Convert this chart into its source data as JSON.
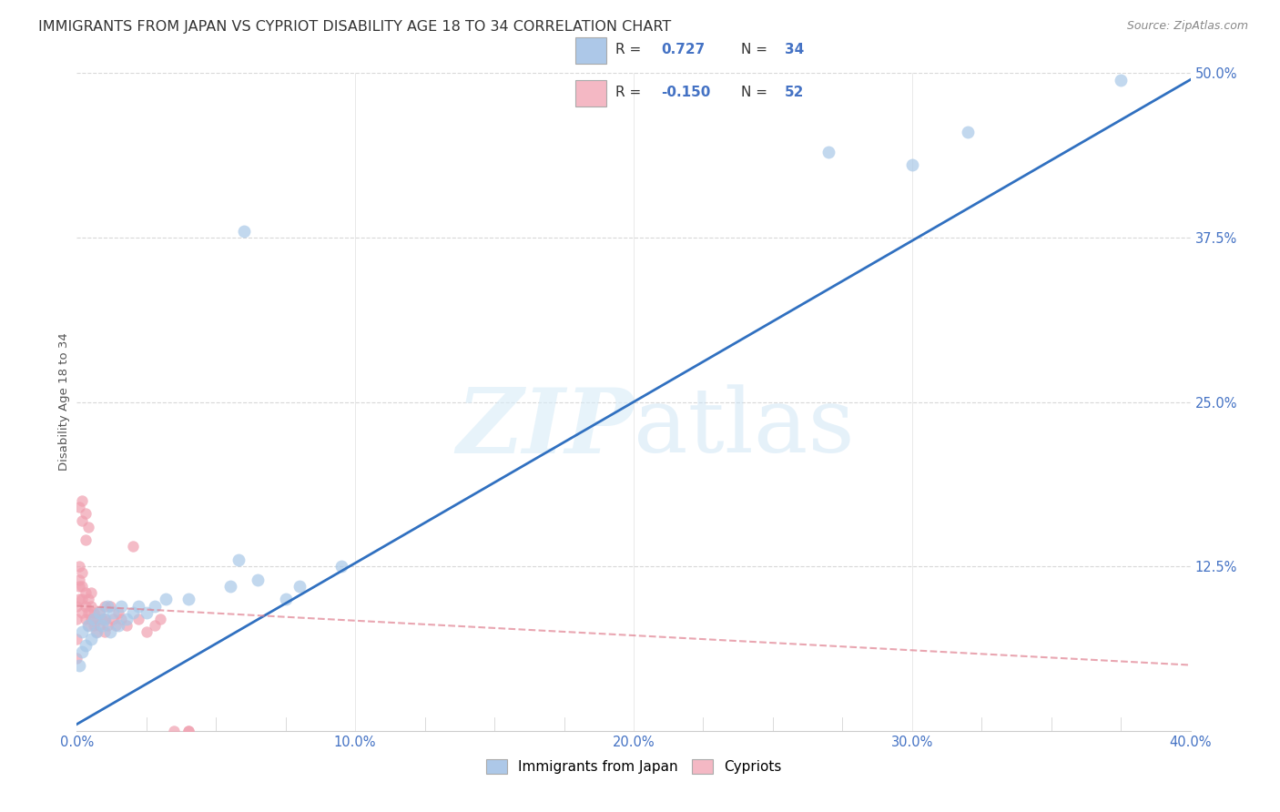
{
  "title": "IMMIGRANTS FROM JAPAN VS CYPRIOT DISABILITY AGE 18 TO 34 CORRELATION CHART",
  "source": "Source: ZipAtlas.com",
  "ylabel": "Disability Age 18 to 34",
  "xlim": [
    0.0,
    0.4
  ],
  "ylim": [
    0.0,
    0.5
  ],
  "xtick_labels": [
    "0.0%",
    "",
    "",
    "",
    "10.0%",
    "",
    "",
    "",
    "20.0%",
    "",
    "",
    "",
    "30.0%",
    "",
    "",
    "",
    "40.0%"
  ],
  "xtick_values": [
    0.0,
    0.025,
    0.05,
    0.075,
    0.1,
    0.125,
    0.15,
    0.175,
    0.2,
    0.225,
    0.25,
    0.275,
    0.3,
    0.325,
    0.35,
    0.375,
    0.4
  ],
  "xtick_major_labels": [
    "0.0%",
    "10.0%",
    "20.0%",
    "30.0%",
    "40.0%"
  ],
  "xtick_major_values": [
    0.0,
    0.1,
    0.2,
    0.3,
    0.4
  ],
  "ytick_labels": [
    "12.5%",
    "25.0%",
    "37.5%",
    "50.0%"
  ],
  "ytick_values": [
    0.125,
    0.25,
    0.375,
    0.5
  ],
  "legend_R1": "0.727",
  "legend_N1": "34",
  "legend_R2": "-0.150",
  "legend_N2": "52",
  "japan_color": "#a8c8e8",
  "cyprus_color": "#f0a0b0",
  "japan_line_color": "#3070c0",
  "cyprus_line_color": "#e08090",
  "legend_japan_color": "#adc8e8",
  "legend_cyprus_color": "#f4b8c4",
  "background_color": "#ffffff",
  "grid_color": "#d8d8d8",
  "title_fontsize": 11.5,
  "axis_label_fontsize": 9.5,
  "tick_fontsize": 10.5,
  "japan_scatter_x": [
    0.001,
    0.002,
    0.002,
    0.003,
    0.004,
    0.005,
    0.006,
    0.007,
    0.008,
    0.009,
    0.01,
    0.011,
    0.012,
    0.013,
    0.015,
    0.016,
    0.018,
    0.02,
    0.022,
    0.025,
    0.028,
    0.032,
    0.04,
    0.055,
    0.065,
    0.08,
    0.095,
    0.06,
    0.075,
    0.058,
    0.27,
    0.3,
    0.32,
    0.375
  ],
  "japan_scatter_y": [
    0.05,
    0.06,
    0.075,
    0.065,
    0.08,
    0.07,
    0.085,
    0.075,
    0.09,
    0.08,
    0.085,
    0.095,
    0.075,
    0.09,
    0.08,
    0.095,
    0.085,
    0.09,
    0.095,
    0.09,
    0.095,
    0.1,
    0.1,
    0.11,
    0.115,
    0.11,
    0.125,
    0.38,
    0.1,
    0.13,
    0.44,
    0.43,
    0.455,
    0.495
  ],
  "cyprus_scatter_x": [
    0.0,
    0.0,
    0.0,
    0.0,
    0.001,
    0.001,
    0.001,
    0.001,
    0.002,
    0.002,
    0.002,
    0.002,
    0.003,
    0.003,
    0.003,
    0.004,
    0.004,
    0.004,
    0.005,
    0.005,
    0.005,
    0.006,
    0.006,
    0.007,
    0.007,
    0.008,
    0.008,
    0.009,
    0.01,
    0.01,
    0.01,
    0.011,
    0.012,
    0.013,
    0.014,
    0.015,
    0.016,
    0.018,
    0.02,
    0.022,
    0.025,
    0.028,
    0.03,
    0.035,
    0.04,
    0.002,
    0.003,
    0.001,
    0.002,
    0.003,
    0.004,
    0.04
  ],
  "cyprus_scatter_y": [
    0.055,
    0.07,
    0.085,
    0.095,
    0.1,
    0.11,
    0.115,
    0.125,
    0.09,
    0.1,
    0.11,
    0.12,
    0.085,
    0.095,
    0.105,
    0.08,
    0.09,
    0.1,
    0.085,
    0.095,
    0.105,
    0.08,
    0.09,
    0.075,
    0.085,
    0.08,
    0.09,
    0.085,
    0.075,
    0.085,
    0.095,
    0.08,
    0.095,
    0.085,
    0.08,
    0.09,
    0.085,
    0.08,
    0.14,
    0.085,
    0.075,
    0.08,
    0.085,
    0.0,
    0.0,
    0.16,
    0.165,
    0.17,
    0.175,
    0.145,
    0.155,
    0.0
  ],
  "japan_line_x": [
    0.0,
    0.4
  ],
  "japan_line_y": [
    0.005,
    0.495
  ],
  "cyprus_line_x": [
    0.0,
    0.4
  ],
  "cyprus_line_y": [
    0.095,
    0.05
  ],
  "dot_size_japan": 100,
  "dot_size_cyprus": 80
}
